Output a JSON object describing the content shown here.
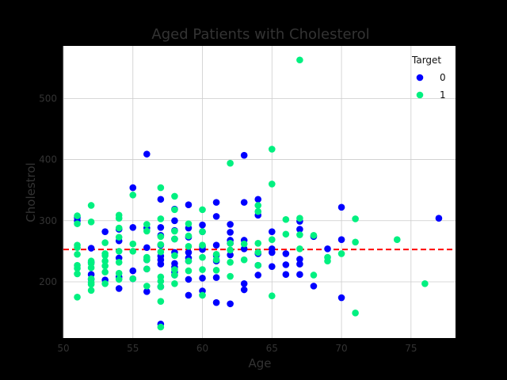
{
  "chart_data": {
    "type": "scatter",
    "title": "Aged Patients with Cholesterol",
    "xlabel": "Age",
    "ylabel": "Cholestrol",
    "xlim": [
      50,
      78.2
    ],
    "ylim": [
      108,
      586
    ],
    "xticks": [
      50,
      55,
      60,
      65,
      70,
      75
    ],
    "yticks": [
      200,
      300,
      400,
      500
    ],
    "grid": true,
    "legend": {
      "title": "Target",
      "placement": "top-right"
    },
    "reference_line": {
      "y": 253,
      "color": "#ff0000",
      "style": "dashed"
    },
    "series": [
      {
        "name": "0",
        "color": "#0000ff",
        "points": [
          [
            51,
            305
          ],
          [
            51,
            300
          ],
          [
            52,
            255
          ],
          [
            52,
            232
          ],
          [
            52,
            212
          ],
          [
            52,
            204
          ],
          [
            53,
            282
          ],
          [
            53,
            203
          ],
          [
            54,
            286
          ],
          [
            54,
            267
          ],
          [
            54,
            239
          ],
          [
            54,
            208
          ],
          [
            54,
            189
          ],
          [
            55,
            354
          ],
          [
            55,
            289
          ],
          [
            55,
            218
          ],
          [
            55,
            205
          ],
          [
            56,
            409
          ],
          [
            56,
            288
          ],
          [
            56,
            256
          ],
          [
            56,
            236
          ],
          [
            56,
            221
          ],
          [
            56,
            184
          ],
          [
            57,
            335
          ],
          [
            57,
            289
          ],
          [
            57,
            276
          ],
          [
            57,
            260
          ],
          [
            57,
            242
          ],
          [
            57,
            236
          ],
          [
            57,
            229
          ],
          [
            57,
            192
          ],
          [
            57,
            131
          ],
          [
            58,
            319
          ],
          [
            58,
            300
          ],
          [
            58,
            284
          ],
          [
            58,
            270
          ],
          [
            58,
            248
          ],
          [
            58,
            230
          ],
          [
            58,
            224
          ],
          [
            58,
            216
          ],
          [
            58,
            211
          ],
          [
            59,
            326
          ],
          [
            59,
            288
          ],
          [
            59,
            273
          ],
          [
            59,
            248
          ],
          [
            59,
            239
          ],
          [
            59,
            234
          ],
          [
            59,
            204
          ],
          [
            59,
            178
          ],
          [
            60,
            293
          ],
          [
            60,
            282
          ],
          [
            60,
            258
          ],
          [
            60,
            253
          ],
          [
            60,
            206
          ],
          [
            60,
            185
          ],
          [
            61,
            330
          ],
          [
            61,
            307
          ],
          [
            61,
            260
          ],
          [
            61,
            243
          ],
          [
            61,
            234
          ],
          [
            61,
            207
          ],
          [
            61,
            166
          ],
          [
            62,
            294
          ],
          [
            62,
            281
          ],
          [
            62,
            268
          ],
          [
            62,
            263
          ],
          [
            62,
            244
          ],
          [
            62,
            164
          ],
          [
            63,
            407
          ],
          [
            63,
            330
          ],
          [
            63,
            268
          ],
          [
            63,
            254
          ],
          [
            63,
            197
          ],
          [
            63,
            187
          ],
          [
            64,
            335
          ],
          [
            64,
            309
          ],
          [
            64,
            246
          ],
          [
            64,
            227
          ],
          [
            64,
            211
          ],
          [
            65,
            282
          ],
          [
            65,
            254
          ],
          [
            65,
            248
          ],
          [
            65,
            225
          ],
          [
            66,
            246
          ],
          [
            66,
            228
          ],
          [
            66,
            212
          ],
          [
            67,
            299
          ],
          [
            67,
            286
          ],
          [
            67,
            237
          ],
          [
            67,
            229
          ],
          [
            67,
            212
          ],
          [
            68,
            274
          ],
          [
            68,
            193
          ],
          [
            69,
            254
          ],
          [
            70,
            322
          ],
          [
            70,
            269
          ],
          [
            70,
            174
          ],
          [
            77,
            304
          ]
        ]
      },
      {
        "name": "1",
        "color": "#00f080",
        "points": [
          [
            51,
            308
          ],
          [
            51,
            295
          ],
          [
            51,
            260
          ],
          [
            51,
            256
          ],
          [
            51,
            245
          ],
          [
            51,
            227
          ],
          [
            51,
            222
          ],
          [
            51,
            213
          ],
          [
            51,
            175
          ],
          [
            52,
            325
          ],
          [
            52,
            298
          ],
          [
            52,
            234
          ],
          [
            52,
            230
          ],
          [
            52,
            223
          ],
          [
            52,
            205
          ],
          [
            52,
            199
          ],
          [
            52,
            196
          ],
          [
            52,
            186
          ],
          [
            53,
            264
          ],
          [
            53,
            246
          ],
          [
            53,
            243
          ],
          [
            53,
            234
          ],
          [
            53,
            226
          ],
          [
            53,
            216
          ],
          [
            53,
            197
          ],
          [
            54,
            309
          ],
          [
            54,
            304
          ],
          [
            54,
            288
          ],
          [
            54,
            273
          ],
          [
            54,
            250
          ],
          [
            54,
            232
          ],
          [
            54,
            214
          ],
          [
            54,
            204
          ],
          [
            55,
            342
          ],
          [
            55,
            262
          ],
          [
            55,
            250
          ],
          [
            55,
            205
          ],
          [
            56,
            294
          ],
          [
            56,
            283
          ],
          [
            56,
            240
          ],
          [
            56,
            236
          ],
          [
            56,
            221
          ],
          [
            56,
            193
          ],
          [
            57,
            354
          ],
          [
            57,
            303
          ],
          [
            57,
            274
          ],
          [
            57,
            261
          ],
          [
            57,
            249
          ],
          [
            57,
            208
          ],
          [
            57,
            201
          ],
          [
            57,
            192
          ],
          [
            57,
            168
          ],
          [
            57,
            126
          ],
          [
            58,
            340
          ],
          [
            58,
            318
          ],
          [
            58,
            283
          ],
          [
            58,
            270
          ],
          [
            58,
            243
          ],
          [
            58,
            220
          ],
          [
            58,
            211
          ],
          [
            58,
            197
          ],
          [
            59,
            295
          ],
          [
            59,
            275
          ],
          [
            59,
            258
          ],
          [
            59,
            234
          ],
          [
            59,
            218
          ],
          [
            60,
            318
          ],
          [
            60,
            282
          ],
          [
            60,
            260
          ],
          [
            60,
            240
          ],
          [
            60,
            220
          ],
          [
            60,
            178
          ],
          [
            61,
            245
          ],
          [
            61,
            236
          ],
          [
            61,
            219
          ],
          [
            62,
            394
          ],
          [
            62,
            263
          ],
          [
            62,
            252
          ],
          [
            62,
            232
          ],
          [
            62,
            209
          ],
          [
            63,
            262
          ],
          [
            63,
            236
          ],
          [
            64,
            325
          ],
          [
            64,
            315
          ],
          [
            64,
            263
          ],
          [
            64,
            248
          ],
          [
            64,
            227
          ],
          [
            65,
            417
          ],
          [
            65,
            360
          ],
          [
            65,
            269
          ],
          [
            65,
            177
          ],
          [
            66,
            302
          ],
          [
            66,
            278
          ],
          [
            67,
            563
          ],
          [
            67,
            304
          ],
          [
            67,
            277
          ],
          [
            67,
            254
          ],
          [
            68,
            276
          ],
          [
            68,
            211
          ],
          [
            69,
            240
          ],
          [
            69,
            234
          ],
          [
            70,
            246
          ],
          [
            71,
            303
          ],
          [
            71,
            265
          ],
          [
            71,
            149
          ],
          [
            74,
            269
          ],
          [
            76,
            197
          ]
        ]
      }
    ]
  }
}
